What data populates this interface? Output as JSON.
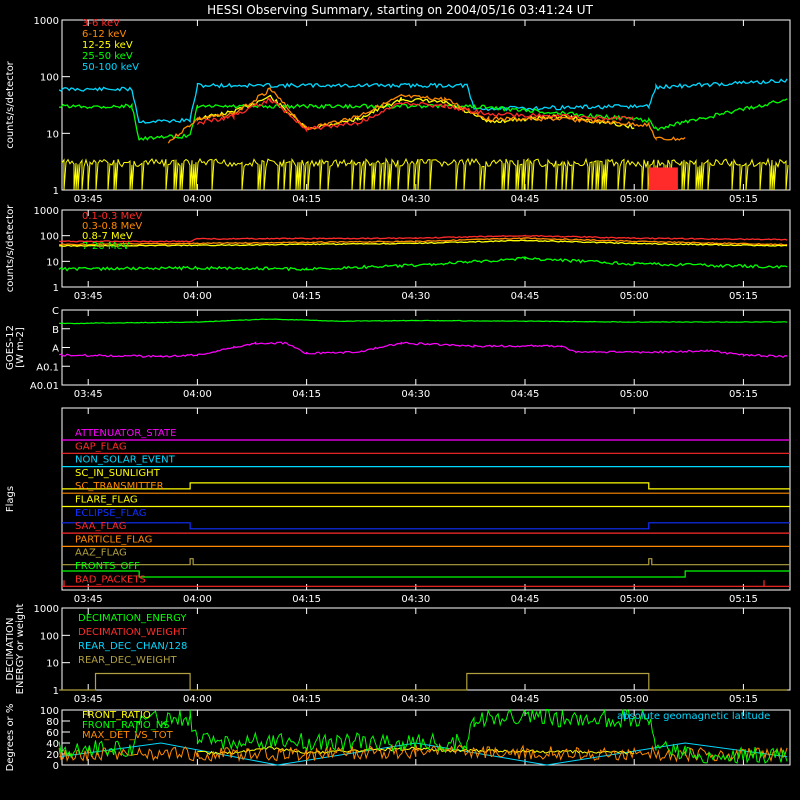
{
  "title": "HESSI Observing Summary, starting on 2004/05/16 03:41:24 UT",
  "time_ticks": [
    "03:45",
    "04:00",
    "04:15",
    "04:30",
    "04:45",
    "05:00",
    "05:15"
  ],
  "colors": {
    "frame": "#ffffff",
    "red": "#ff2a2a",
    "orange": "#ff8a00",
    "yellow": "#ffff00",
    "green": "#00ff00",
    "cyan": "#00d8ff",
    "magenta": "#ff00ff",
    "blue": "#1030ff",
    "olive": "#b0a040",
    "lightorange": "#ff7040"
  },
  "chart_data": [
    {
      "id": "panel1",
      "type": "line",
      "ylabel": "counts/s/detector",
      "yscale": "log",
      "ylim": [
        1,
        1000
      ],
      "y_ticks": [
        "1",
        "10",
        "100",
        "1000"
      ],
      "legend": [
        "3-6 keV",
        "6-12 keV",
        "12-25 keV",
        "25-50 keV",
        "50-100 keV"
      ],
      "series": [
        {
          "name": "50-100 keV",
          "color": "cyan",
          "x": [
            "03:41",
            "03:51",
            "03:52",
            "03:59",
            "04:00",
            "04:37",
            "04:38",
            "05:02",
            "05:03",
            "05:21"
          ],
          "values": [
            60,
            60,
            16,
            17,
            70,
            70,
            27,
            30,
            65,
            85
          ]
        },
        {
          "name": "25-50 keV",
          "color": "green",
          "x": [
            "03:41",
            "03:51",
            "03:52",
            "03:59",
            "04:00",
            "04:38",
            "05:02",
            "05:03",
            "05:21"
          ],
          "values": [
            30,
            30,
            8,
            9,
            30,
            30,
            17,
            12,
            40
          ]
        },
        {
          "name": "12-25 keV",
          "color": "yellow",
          "x": [
            "04:00",
            "04:05",
            "04:10",
            "04:15",
            "04:22",
            "04:28",
            "04:34",
            "04:40",
            "04:50",
            "05:00"
          ],
          "values": [
            18,
            24,
            45,
            12,
            18,
            40,
            35,
            16,
            20,
            13
          ]
        },
        {
          "name": "6-12 keV",
          "color": "orange",
          "x": [
            "03:56",
            "04:00",
            "04:05",
            "04:10",
            "04:15",
            "04:22",
            "04:28",
            "04:34",
            "04:40",
            "04:50",
            "05:02",
            "05:03",
            "05:07"
          ],
          "values": [
            7,
            18,
            22,
            60,
            12,
            20,
            45,
            40,
            18,
            18,
            14,
            8,
            8
          ]
        },
        {
          "name": "3-6 keV",
          "color": "red",
          "x": [
            "04:00",
            "04:05",
            "04:10",
            "04:15",
            "04:22",
            "04:28",
            "04:34",
            "04:40",
            "04:50",
            "05:00"
          ],
          "values": [
            15,
            20,
            40,
            12,
            15,
            35,
            30,
            22,
            20,
            18
          ]
        }
      ]
    },
    {
      "id": "panel2",
      "type": "line",
      "ylabel": "counts/s/detector",
      "yscale": "log",
      "ylim": [
        1,
        1000
      ],
      "y_ticks": [
        "1",
        "10",
        "100",
        "1000"
      ],
      "legend": [
        "0.1-0.3 MeV",
        "0.3-0.8 MeV",
        "0.8-7 MeV",
        "7-20 MeV"
      ],
      "series": [
        {
          "name": "0.1-0.3 MeV",
          "color": "red",
          "x": [
            "03:41",
            "03:59",
            "04:00",
            "04:30",
            "04:45",
            "05:00",
            "05:21"
          ],
          "values": [
            60,
            60,
            75,
            80,
            100,
            80,
            70
          ]
        },
        {
          "name": "0.3-0.8 MeV",
          "color": "orange",
          "x": [
            "03:41",
            "04:00",
            "04:30",
            "04:45",
            "05:00",
            "05:21"
          ],
          "values": [
            45,
            50,
            60,
            80,
            60,
            45
          ]
        },
        {
          "name": "0.8-7 MeV",
          "color": "yellow",
          "x": [
            "03:41",
            "04:00",
            "04:30",
            "04:45",
            "05:00",
            "05:21"
          ],
          "values": [
            40,
            42,
            50,
            65,
            50,
            40
          ]
        },
        {
          "name": "7-20 MeV",
          "color": "green",
          "x": [
            "03:41",
            "04:00",
            "04:15",
            "04:30",
            "04:45",
            "05:00",
            "05:21"
          ],
          "values": [
            5,
            5.5,
            5,
            7,
            13,
            8,
            6
          ]
        }
      ]
    },
    {
      "id": "panel3",
      "type": "line",
      "ylabel": "GOES-12\n[W m-2]",
      "y_ticks": [
        "A0.01",
        "A0.1",
        "A",
        "B",
        "C"
      ],
      "series": [
        {
          "name": "long",
          "color": "green",
          "x": [
            "03:41",
            "04:00",
            "04:10",
            "04:20",
            "04:30",
            "05:00",
            "05:21"
          ],
          "values": [
            0.82,
            0.84,
            0.88,
            0.85,
            0.86,
            0.84,
            0.84
          ]
        },
        {
          "name": "short",
          "color": "magenta",
          "x": [
            "03:41",
            "03:55",
            "04:00",
            "04:05",
            "04:08",
            "04:12",
            "04:15",
            "04:22",
            "04:28",
            "04:38",
            "04:50",
            "04:52",
            "05:05",
            "05:10",
            "05:15",
            "05:21"
          ],
          "values": [
            0.4,
            0.38,
            0.4,
            0.5,
            0.56,
            0.56,
            0.42,
            0.44,
            0.56,
            0.52,
            0.52,
            0.44,
            0.44,
            0.46,
            0.4,
            0.38
          ]
        }
      ]
    },
    {
      "id": "panel4",
      "type": "line",
      "ylabel": "Flags",
      "flags": [
        {
          "name": "ATTENUATOR_STATE",
          "color": "magenta"
        },
        {
          "name": "GAP_FLAG",
          "color": "red"
        },
        {
          "name": "NON_SOLAR_EVENT",
          "color": "cyan"
        },
        {
          "name": "SC_IN_SUNLIGHT",
          "color": "yellow"
        },
        {
          "name": "SC_TRANSMITTER",
          "color": "orange"
        },
        {
          "name": "FLARE_FLAG",
          "color": "yellow"
        },
        {
          "name": "ECLIPSE_FLAG",
          "color": "blue"
        },
        {
          "name": "SAA_FLAG",
          "color": "red"
        },
        {
          "name": "PARTICLE_FLAG",
          "color": "orange"
        },
        {
          "name": "AAZ_FLAG",
          "color": "olive"
        },
        {
          "name": "FRONTS_OFF",
          "color": "green"
        },
        {
          "name": "BAD_PACKETS",
          "color": "red"
        }
      ]
    },
    {
      "id": "panel5",
      "type": "line",
      "ylabel": "DECIMATION\nENERGY or weight",
      "yscale": "log",
      "ylim": [
        1,
        1000
      ],
      "y_ticks": [
        "1",
        "10",
        "100",
        "1000"
      ],
      "legend": [
        "DECIMATION_ENERGY",
        "DECIMATION_WEIGHT",
        "REAR_DEC_CHAN/128",
        "REAR_DEC_WEIGHT"
      ],
      "series": [
        {
          "name": "REAR_DEC_WEIGHT",
          "color": "olive",
          "x": [
            "03:41",
            "03:46",
            "03:46",
            "03:59",
            "03:59",
            "04:37",
            "04:37",
            "05:02",
            "05:02",
            "05:21"
          ],
          "values": [
            1,
            1,
            4,
            4,
            1,
            1,
            4,
            4,
            1,
            1
          ]
        }
      ]
    },
    {
      "id": "panel6",
      "type": "line",
      "ylabel": "Degrees or %",
      "ylim": [
        0,
        100
      ],
      "y_ticks": [
        "0",
        "20",
        "40",
        "60",
        "80",
        "100"
      ],
      "legend": [
        "FRONT_RATIO",
        "FRONT_RATIO_NS",
        "MAX_DET_VS_TOT"
      ],
      "annotation": "absolute geomagnetic latitude",
      "series": [
        {
          "name": "FRONT_RATIO",
          "color": "green",
          "x": [
            "03:41",
            "03:51",
            "03:52",
            "03:59",
            "04:00",
            "04:37",
            "04:38",
            "05:02",
            "05:03",
            "05:07",
            "05:21"
          ],
          "values": [
            30,
            30,
            80,
            85,
            45,
            40,
            85,
            85,
            30,
            20,
            18
          ]
        },
        {
          "name": "FRONT_RATIO_NS",
          "color": "yellow",
          "x": [
            "04:00",
            "04:05",
            "04:10",
            "04:15",
            "04:25",
            "04:30",
            "04:35",
            "04:45",
            "05:00"
          ],
          "values": [
            22,
            22,
            32,
            22,
            28,
            30,
            26,
            25,
            22
          ]
        },
        {
          "name": "MAX_DET_VS_TOT",
          "color": "orange",
          "x": [
            "03:41",
            "04:00",
            "04:15",
            "04:30",
            "04:45",
            "05:00",
            "05:21"
          ],
          "values": [
            20,
            20,
            20,
            25,
            22,
            20,
            20
          ]
        },
        {
          "name": "absolute geomagnetic latitude",
          "color": "cyan",
          "x": [
            "03:41",
            "03:55",
            "04:11",
            "04:30",
            "04:48",
            "05:07",
            "05:21"
          ],
          "values": [
            15,
            40,
            0,
            40,
            0,
            40,
            15
          ]
        }
      ]
    }
  ]
}
